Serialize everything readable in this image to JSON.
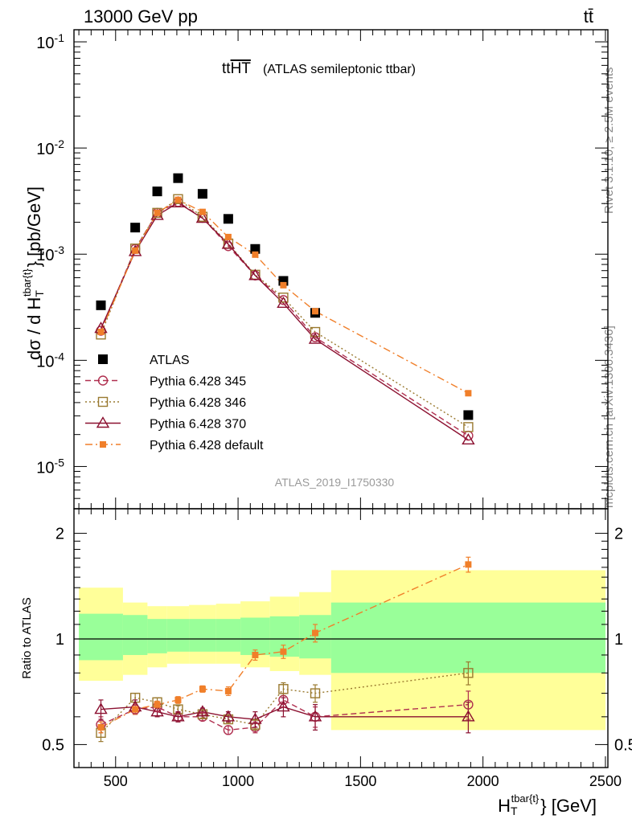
{
  "header": {
    "left": "13000 GeV pp",
    "right": "tt̄"
  },
  "side_labels": {
    "top": "Rivet 3.1.10, ≥ 2.5M events",
    "bottom": "mcplots.cern.ch [arXiv:1306.3436]"
  },
  "plot_title": {
    "main": "tt",
    "overline": "HT",
    "sub": "(ATLAS semileptonic ttbar)"
  },
  "analysis_label": "ATLAS_2019_I1750330",
  "colors": {
    "atlas": "#000000",
    "p345": "#b03050",
    "p346": "#9a7a30",
    "p370": "#8b1030",
    "pdefault": "#f07f2a",
    "band_yellow": "#ffff99",
    "band_green": "#99ff99"
  },
  "chart_data": [
    {
      "type": "scatter",
      "panel": "main",
      "ylabel_parts": {
        "pre": "dσ / d H",
        "sup": "tbar{t}",
        "sub": "T",
        "post": "} [pb/GeV]"
      },
      "yscale": "log",
      "ylim": [
        4e-06,
        0.13
      ],
      "xlim": [
        330,
        2510
      ],
      "y_ticklabels": [
        "10^-1",
        "10^-2",
        "10^-3",
        "10^-4",
        "10^-5"
      ],
      "legend": {
        "position": "bottom-left"
      },
      "x": [
        440,
        580,
        670,
        755,
        855,
        960,
        1070,
        1185,
        1315,
        1940
      ],
      "xerr": [
        [
          350,
          530
        ],
        [
          530,
          630
        ],
        [
          630,
          710
        ],
        [
          710,
          800
        ],
        [
          800,
          910
        ],
        [
          910,
          1010
        ],
        [
          1010,
          1130
        ],
        [
          1130,
          1250
        ],
        [
          1250,
          1380
        ],
        [
          1380,
          2500
        ]
      ],
      "series": [
        {
          "name": "ATLAS",
          "key": "atlas",
          "marker": "filled-square",
          "values": [
            0.00033,
            0.00178,
            0.0039,
            0.0052,
            0.0037,
            0.00215,
            0.00112,
            0.00056,
            0.00028,
            3.05e-05
          ]
        },
        {
          "name": "Pythia 6.428 345",
          "key": "p345",
          "marker": "open-circle",
          "line": "dashed",
          "values": [
            0.00019,
            0.00112,
            0.00245,
            0.0031,
            0.0022,
            0.00119,
            0.00063,
            0.00037,
            0.000165,
            1.95e-05
          ]
        },
        {
          "name": "Pythia 6.428 346",
          "key": "p346",
          "marker": "open-square",
          "line": "dotted",
          "values": [
            0.000175,
            0.00113,
            0.00245,
            0.0033,
            0.00225,
            0.00126,
            0.00064,
            0.00039,
            0.000185,
            2.35e-05
          ]
        },
        {
          "name": "Pythia 6.428 370",
          "key": "p370",
          "marker": "open-triangle",
          "line": "solid",
          "values": [
            0.0002,
            0.00106,
            0.00232,
            0.00305,
            0.00218,
            0.00124,
            0.00063,
            0.000345,
            0.000158,
            1.78e-05
          ]
        },
        {
          "name": "Pythia 6.428 default",
          "key": "pdefault",
          "marker": "small-filled-square",
          "line": "dash-dot",
          "values": [
            0.000185,
            0.00108,
            0.00245,
            0.00325,
            0.0025,
            0.00145,
            0.00099,
            0.00051,
            0.00029,
            4.9e-05
          ]
        }
      ]
    },
    {
      "type": "line",
      "panel": "ratio",
      "ylabel": "Ratio to ATLAS",
      "yscale": "log",
      "ylim": [
        0.43,
        2.35
      ],
      "xlim": [
        330,
        2510
      ],
      "xlabel_parts": {
        "pre": "H",
        "sup": "tbar{t}",
        "sub": "T",
        "post": "} [GeV]"
      },
      "x_ticks": [
        500,
        1000,
        1500,
        2000,
        2500
      ],
      "x_ticklabels": [
        "500",
        "1000",
        "1500",
        "2000",
        "2500"
      ],
      "y_ticks": [
        0.5,
        1,
        2
      ],
      "y_ticklabels": [
        "0.5",
        "1",
        "2"
      ],
      "bands": [
        {
          "x0": 350,
          "x1": 530,
          "inner": [
            0.87,
            1.18
          ],
          "outer": [
            0.76,
            1.4
          ]
        },
        {
          "x0": 530,
          "x1": 630,
          "inner": [
            0.9,
            1.17
          ],
          "outer": [
            0.79,
            1.27
          ]
        },
        {
          "x0": 630,
          "x1": 710,
          "inner": [
            0.91,
            1.14
          ],
          "outer": [
            0.83,
            1.24
          ]
        },
        {
          "x0": 710,
          "x1": 800,
          "inner": [
            0.92,
            1.14
          ],
          "outer": [
            0.85,
            1.24
          ]
        },
        {
          "x0": 800,
          "x1": 910,
          "inner": [
            0.92,
            1.14
          ],
          "outer": [
            0.85,
            1.25
          ]
        },
        {
          "x0": 910,
          "x1": 1010,
          "inner": [
            0.92,
            1.14
          ],
          "outer": [
            0.85,
            1.26
          ]
        },
        {
          "x0": 1010,
          "x1": 1130,
          "inner": [
            0.9,
            1.15
          ],
          "outer": [
            0.83,
            1.28
          ]
        },
        {
          "x0": 1130,
          "x1": 1250,
          "inner": [
            0.89,
            1.16
          ],
          "outer": [
            0.81,
            1.32
          ]
        },
        {
          "x0": 1250,
          "x1": 1380,
          "inner": [
            0.88,
            1.17
          ],
          "outer": [
            0.79,
            1.36
          ]
        },
        {
          "x0": 1380,
          "x1": 2500,
          "inner": [
            0.8,
            1.27
          ],
          "outer": [
            0.55,
            1.57
          ]
        }
      ],
      "reference": 1,
      "series": [
        {
          "name": "Pythia 6.428 345",
          "key": "p345",
          "values": [
            0.57,
            0.63,
            0.64,
            0.6,
            0.6,
            0.55,
            0.56,
            0.67,
            0.6,
            0.65
          ],
          "err": [
            0.03,
            0.02,
            0.02,
            0.015,
            0.015,
            0.015,
            0.02,
            0.03,
            0.04,
            0.06
          ]
        },
        {
          "name": "Pythia 6.428 346",
          "key": "p346",
          "values": [
            0.54,
            0.68,
            0.66,
            0.63,
            0.61,
            0.59,
            0.57,
            0.72,
            0.7,
            0.8
          ],
          "err": [
            0.03,
            0.02,
            0.02,
            0.015,
            0.015,
            0.015,
            0.02,
            0.03,
            0.04,
            0.06
          ]
        },
        {
          "name": "Pythia 6.428 370",
          "key": "p370",
          "values": [
            0.63,
            0.64,
            0.62,
            0.6,
            0.62,
            0.6,
            0.59,
            0.64,
            0.6,
            0.6
          ],
          "err": [
            0.04,
            0.03,
            0.02,
            0.02,
            0.015,
            0.02,
            0.03,
            0.04,
            0.05,
            0.06
          ]
        },
        {
          "name": "Pythia 6.428 default",
          "key": "pdefault",
          "values": [
            0.56,
            0.63,
            0.65,
            0.67,
            0.72,
            0.71,
            0.9,
            0.92,
            1.04,
            1.63
          ],
          "err": [
            0.02,
            0.02,
            0.015,
            0.015,
            0.015,
            0.02,
            0.03,
            0.04,
            0.06,
            0.08
          ]
        }
      ]
    }
  ]
}
